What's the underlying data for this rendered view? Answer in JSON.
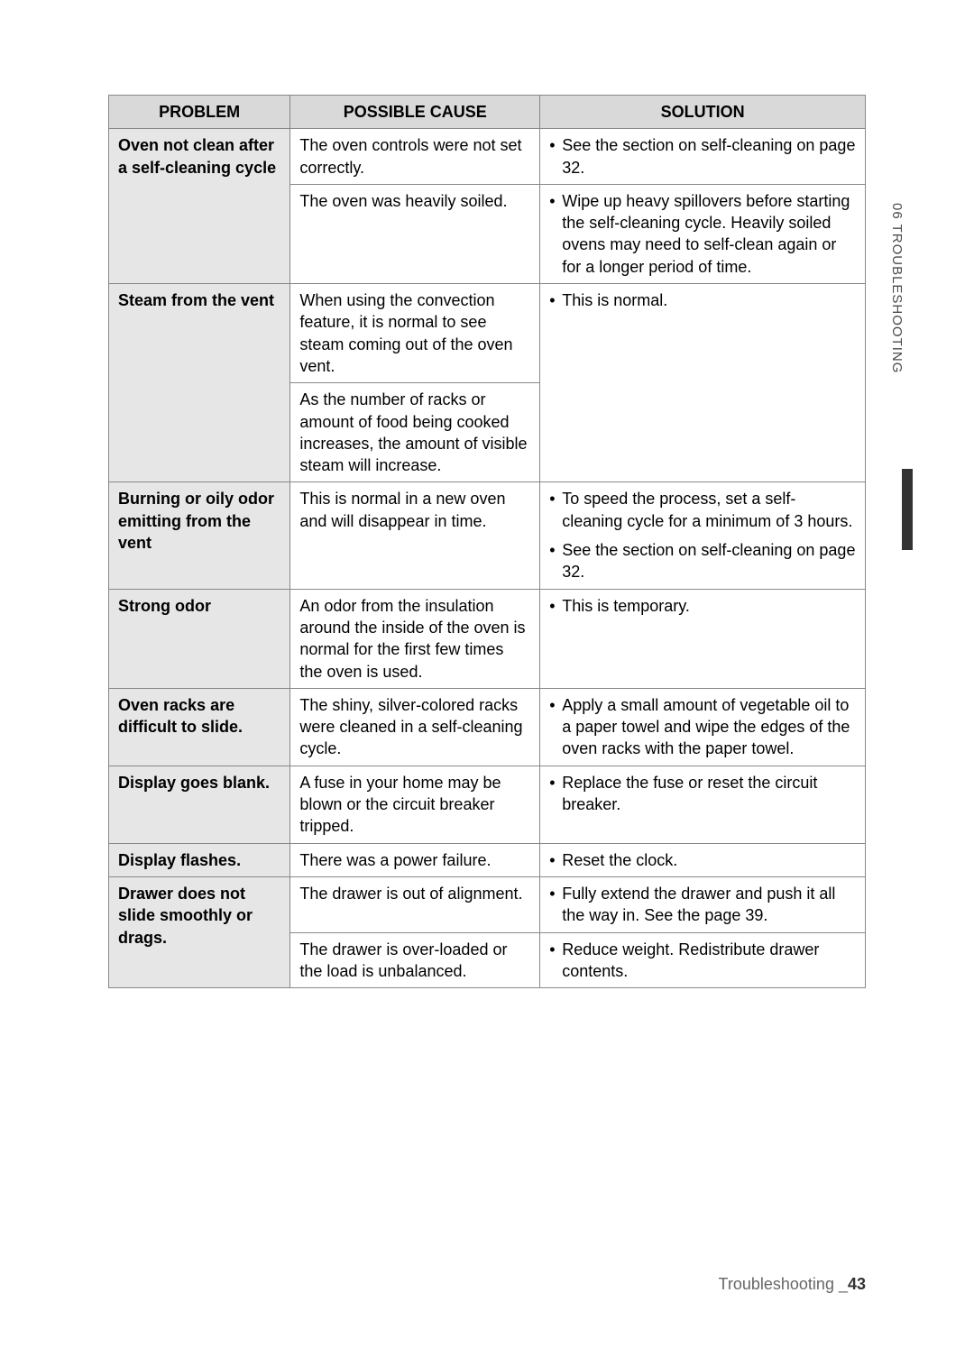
{
  "headers": {
    "problem": "PROBLEM",
    "cause": "POSSIBLE CAUSE",
    "solution": "SOLUTION"
  },
  "rows": [
    {
      "problem": "Oven not clean after a self-cleaning cycle",
      "problem_rowspan": 2,
      "cause": "The oven controls were not set correctly.",
      "solution": "See the section on self-cleaning on page 32."
    },
    {
      "cause": "The oven was heavily soiled.",
      "solution": "Wipe up heavy spillovers before starting the self-cleaning cycle. Heavily soiled ovens may need to self-clean again or for a longer period of time."
    },
    {
      "problem": "Steam from the vent",
      "problem_rowspan": 2,
      "cause": "When using the convection feature, it is normal to see steam coming out of the oven vent.",
      "solution": "This is normal.",
      "solution_rowspan": 2
    },
    {
      "cause": "As the number of racks or amount of food being cooked increases, the amount of visible steam will increase."
    },
    {
      "problem": "Burning or oily odor emitting from the vent",
      "cause": "This is normal in a new oven and will disappear in time.",
      "solution_multi": [
        "To speed the process, set a self-cleaning cycle for a minimum of 3 hours.",
        "See the section on self-cleaning on page 32."
      ]
    },
    {
      "problem": "Strong odor",
      "cause": "An odor from the insulation around the inside of the oven is normal for the first few times the oven is used.",
      "solution": "This is temporary."
    },
    {
      "problem": "Oven racks are difficult to slide.",
      "cause": "The shiny, silver-colored racks were cleaned in a self-cleaning cycle.",
      "solution": "Apply a small amount of vegetable oil to a paper towel and wipe the edges of the oven racks with the paper towel."
    },
    {
      "problem": "Display goes blank.",
      "cause": "A fuse in your home may be blown or the circuit breaker tripped.",
      "solution": "Replace the fuse or reset the circuit breaker."
    },
    {
      "problem": "Display flashes.",
      "cause": "There was a power failure.",
      "solution": "Reset the clock."
    },
    {
      "problem": "Drawer does not slide smoothly or drags.",
      "problem_rowspan": 2,
      "cause": "The drawer is out of alignment.",
      "solution": "Fully extend the drawer and push it all the way in. See the page 39."
    },
    {
      "cause": "The drawer is over-loaded or the load is unbalanced.",
      "solution": "Reduce weight. Redistribute drawer contents."
    }
  ],
  "side_label": "06  TROUBLESHOOTING",
  "footer_text": "Troubleshooting _",
  "footer_page": "43"
}
